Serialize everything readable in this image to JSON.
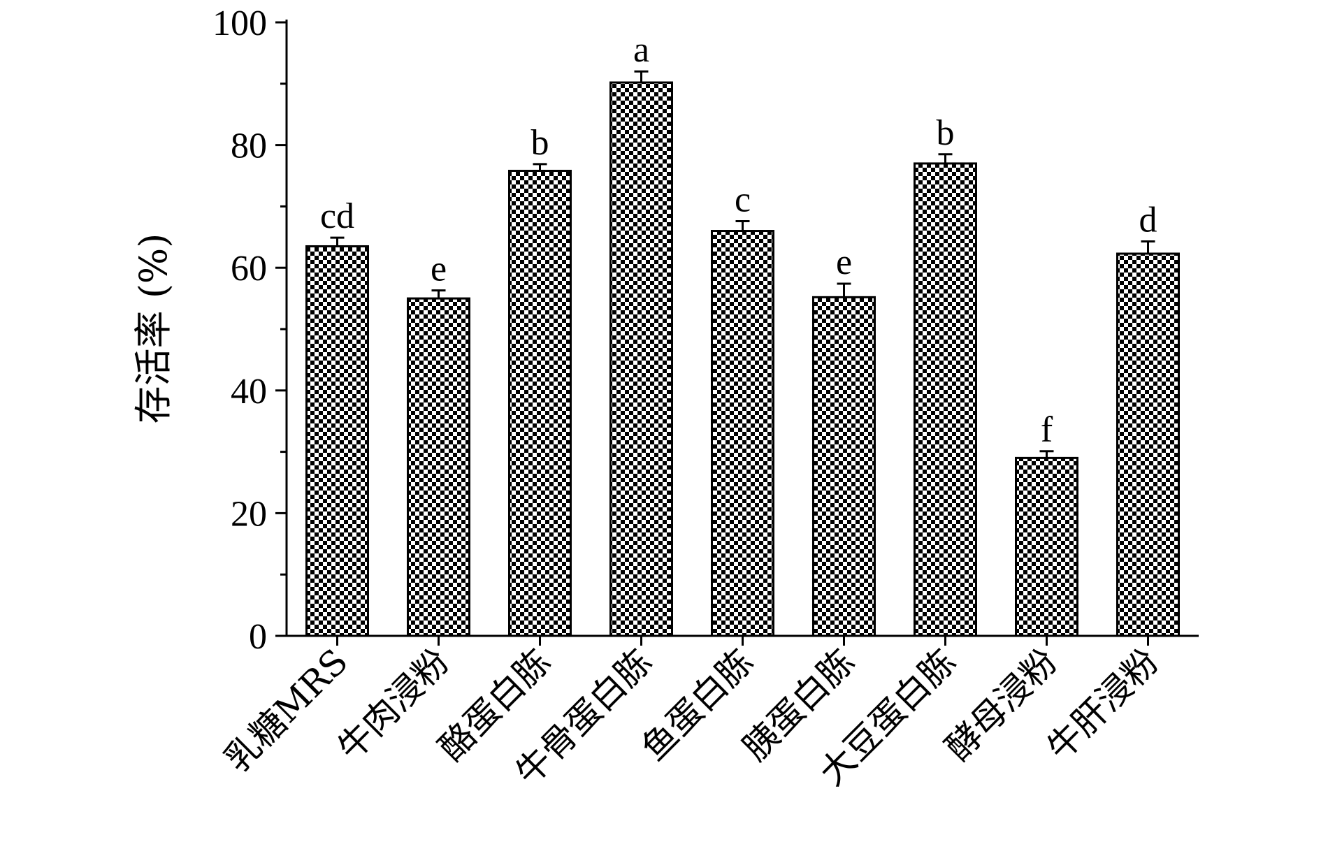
{
  "chart_data": {
    "type": "bar",
    "title": "",
    "xlabel": "",
    "ylabel": "存活率 (%)",
    "ylim": [
      0,
      100
    ],
    "yticks": [
      0,
      20,
      40,
      60,
      80,
      100
    ],
    "categories": [
      "乳糖MRS",
      "牛肉浸粉",
      "酪蛋白胨",
      "牛骨蛋白胨",
      "鱼蛋白胨",
      "胰蛋白胨",
      "大豆蛋白胨",
      "酵母浸粉",
      "牛肝浸粉"
    ],
    "values": [
      63.5,
      55.0,
      75.8,
      90.2,
      66.0,
      55.2,
      77.0,
      29.0,
      62.3
    ],
    "errors": [
      1.4,
      1.3,
      1.1,
      1.8,
      1.6,
      2.2,
      1.5,
      1.1,
      2.0
    ],
    "significance_labels": [
      "cd",
      "e",
      "b",
      "a",
      "c",
      "e",
      "b",
      "f",
      "d"
    ],
    "bar_color": "#000000",
    "pattern": "checkered",
    "grid": false,
    "legend": "none"
  }
}
